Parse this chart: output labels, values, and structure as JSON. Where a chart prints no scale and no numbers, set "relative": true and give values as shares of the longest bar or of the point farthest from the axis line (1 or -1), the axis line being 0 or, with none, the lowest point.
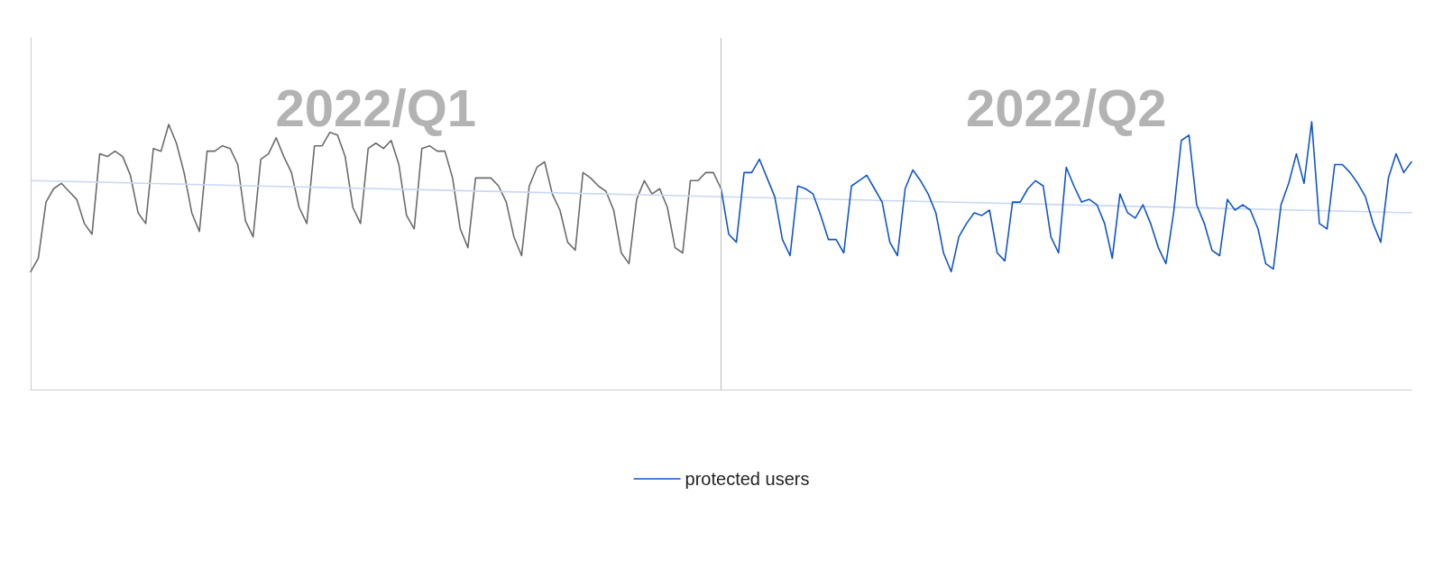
{
  "chart_data": {
    "type": "line",
    "relative": true,
    "categories": [
      null,
      null,
      null,
      null,
      null,
      null,
      null,
      null,
      null,
      null,
      null,
      null,
      null,
      null,
      null,
      null,
      null,
      null,
      null,
      null,
      null,
      null,
      null,
      null,
      null,
      null,
      null,
      null,
      null,
      null,
      null,
      null,
      null,
      null,
      null,
      null,
      null,
      null,
      null,
      null,
      null,
      null,
      null,
      null,
      null,
      null,
      null,
      null,
      null,
      null,
      null,
      null,
      null,
      null,
      null,
      null,
      null,
      null,
      null,
      null,
      null,
      null,
      null,
      null,
      null,
      null,
      null,
      null,
      null,
      null,
      null,
      null,
      null,
      null,
      null,
      null,
      null,
      null,
      null,
      null,
      null,
      null,
      null,
      null,
      null,
      null,
      null,
      null,
      null,
      null,
      null,
      null,
      null,
      null,
      null,
      null,
      null,
      null,
      null,
      null,
      null,
      null,
      null,
      null,
      null,
      null,
      null,
      null,
      null,
      null,
      null,
      null,
      null,
      null,
      null,
      null,
      null,
      null,
      null,
      null,
      null,
      null,
      null,
      null,
      null,
      null,
      null,
      null,
      null,
      null,
      null,
      null,
      null,
      null,
      null,
      null,
      null,
      null,
      null,
      null,
      null,
      null,
      null,
      null,
      null,
      null,
      null,
      null,
      null,
      null,
      null,
      null,
      null,
      null,
      null,
      null,
      null,
      null,
      null,
      null,
      null,
      null,
      null,
      null,
      null,
      null,
      null,
      null,
      null,
      null,
      null,
      null,
      null,
      null,
      null,
      null,
      null,
      null,
      null,
      null,
      null
    ],
    "series": [
      {
        "color": "#6b6b6b",
        "values": [
          0.44,
          0.49,
          0.7,
          0.75,
          0.77,
          0.74,
          0.71,
          0.62,
          0.58,
          0.88,
          0.87,
          0.89,
          0.87,
          0.8,
          0.66,
          0.62,
          0.9,
          0.89,
          0.99,
          0.92,
          0.81,
          0.66,
          0.59,
          0.89,
          0.89,
          0.91,
          0.9,
          0.84,
          0.63,
          0.57,
          0.86,
          0.88,
          0.94,
          0.87,
          0.81,
          0.68,
          0.62,
          0.91,
          0.91,
          0.96,
          0.95,
          0.87,
          0.68,
          0.62,
          0.9,
          0.92,
          0.9,
          0.93,
          0.84,
          0.65,
          0.6,
          0.9,
          0.91,
          0.89,
          0.89,
          0.79,
          0.6,
          0.53,
          0.79,
          0.79,
          0.79,
          0.76,
          0.7,
          0.57,
          0.5,
          0.76,
          0.83,
          0.85,
          0.73,
          0.67,
          0.55,
          0.52,
          0.81,
          0.79,
          0.76,
          0.74,
          0.67,
          0.51,
          0.47,
          0.71,
          0.78,
          0.73,
          0.75,
          0.68,
          0.53,
          0.51,
          0.78,
          0.78,
          0.81,
          0.81,
          0.75,
          null,
          null,
          null,
          null,
          null,
          null,
          null,
          null,
          null,
          null,
          null,
          null,
          null,
          null,
          null,
          null,
          null,
          null,
          null,
          null,
          null,
          null,
          null,
          null,
          null,
          null,
          null,
          null,
          null,
          null,
          null,
          null,
          null,
          null,
          null,
          null,
          null,
          null,
          null,
          null,
          null,
          null,
          null,
          null,
          null,
          null,
          null,
          null,
          null,
          null,
          null,
          null,
          null,
          null,
          null,
          null,
          null,
          null,
          null,
          null,
          null,
          null,
          null,
          null,
          null,
          null,
          null,
          null,
          null,
          null,
          null,
          null,
          null,
          null,
          null,
          null,
          null,
          null,
          null,
          null,
          null,
          null,
          null,
          null,
          null,
          null,
          null,
          null,
          null,
          null
        ]
      },
      {
        "name": "protected users",
        "color": "#1155cc",
        "values": [
          null,
          null,
          null,
          null,
          null,
          null,
          null,
          null,
          null,
          null,
          null,
          null,
          null,
          null,
          null,
          null,
          null,
          null,
          null,
          null,
          null,
          null,
          null,
          null,
          null,
          null,
          null,
          null,
          null,
          null,
          null,
          null,
          null,
          null,
          null,
          null,
          null,
          null,
          null,
          null,
          null,
          null,
          null,
          null,
          null,
          null,
          null,
          null,
          null,
          null,
          null,
          null,
          null,
          null,
          null,
          null,
          null,
          null,
          null,
          null,
          null,
          null,
          null,
          null,
          null,
          null,
          null,
          null,
          null,
          null,
          null,
          null,
          null,
          null,
          null,
          null,
          null,
          null,
          null,
          null,
          null,
          null,
          null,
          null,
          null,
          null,
          null,
          null,
          null,
          null,
          0.75,
          0.58,
          0.55,
          0.81,
          0.81,
          0.86,
          0.79,
          0.72,
          0.56,
          0.5,
          0.76,
          0.75,
          0.73,
          0.65,
          0.56,
          0.56,
          0.51,
          0.76,
          0.78,
          0.8,
          0.75,
          0.7,
          0.55,
          0.5,
          0.75,
          0.82,
          0.78,
          0.73,
          0.66,
          0.51,
          0.44,
          0.57,
          0.62,
          0.66,
          0.65,
          0.67,
          0.51,
          0.48,
          0.7,
          0.7,
          0.75,
          0.78,
          0.76,
          0.57,
          0.51,
          0.83,
          0.76,
          0.7,
          0.71,
          0.69,
          0.62,
          0.49,
          0.73,
          0.66,
          0.64,
          0.69,
          0.62,
          0.53,
          0.47,
          0.66,
          0.93,
          0.95,
          0.69,
          0.62,
          0.52,
          0.5,
          0.71,
          0.67,
          0.69,
          0.67,
          0.6,
          0.47,
          0.45,
          0.69,
          0.77,
          0.88,
          0.77,
          1.0,
          0.62,
          0.6,
          0.84,
          0.84,
          0.81,
          0.77,
          0.72,
          0.62,
          0.55,
          0.79,
          0.88,
          0.81,
          0.85
        ]
      },
      {
        "type": "line",
        "color": "#c9d7f5",
        "values": [
          0.78,
          null,
          null,
          null,
          null,
          null,
          null,
          null,
          null,
          null,
          null,
          null,
          null,
          null,
          null,
          null,
          null,
          null,
          null,
          null,
          null,
          null,
          null,
          null,
          null,
          null,
          null,
          null,
          null,
          null,
          null,
          null,
          null,
          null,
          null,
          null,
          null,
          null,
          null,
          null,
          null,
          null,
          null,
          null,
          null,
          null,
          null,
          null,
          null,
          null,
          null,
          null,
          null,
          null,
          null,
          null,
          null,
          null,
          null,
          null,
          null,
          null,
          null,
          null,
          null,
          null,
          null,
          null,
          null,
          null,
          null,
          null,
          null,
          null,
          null,
          null,
          null,
          null,
          null,
          null,
          null,
          null,
          null,
          null,
          null,
          null,
          null,
          null,
          null,
          null,
          null,
          null,
          null,
          null,
          null,
          null,
          null,
          null,
          null,
          null,
          null,
          null,
          null,
          null,
          null,
          null,
          null,
          null,
          null,
          null,
          null,
          null,
          null,
          null,
          null,
          null,
          null,
          null,
          null,
          null,
          null,
          null,
          null,
          null,
          null,
          null,
          null,
          null,
          null,
          null,
          null,
          null,
          null,
          null,
          null,
          null,
          null,
          null,
          null,
          null,
          null,
          null,
          null,
          null,
          null,
          null,
          null,
          null,
          null,
          null,
          null,
          null,
          null,
          null,
          null,
          null,
          null,
          null,
          null,
          null,
          null,
          null,
          null,
          null,
          null,
          null,
          null,
          null,
          null,
          null,
          null,
          null,
          null,
          null,
          null,
          null,
          null,
          null,
          null,
          null,
          0.66
        ]
      }
    ],
    "annotations": [
      "2022/Q1",
      "2022/Q2"
    ],
    "legend": "bottom",
    "grid": false,
    "marker": "none",
    "line_style": "solid"
  }
}
